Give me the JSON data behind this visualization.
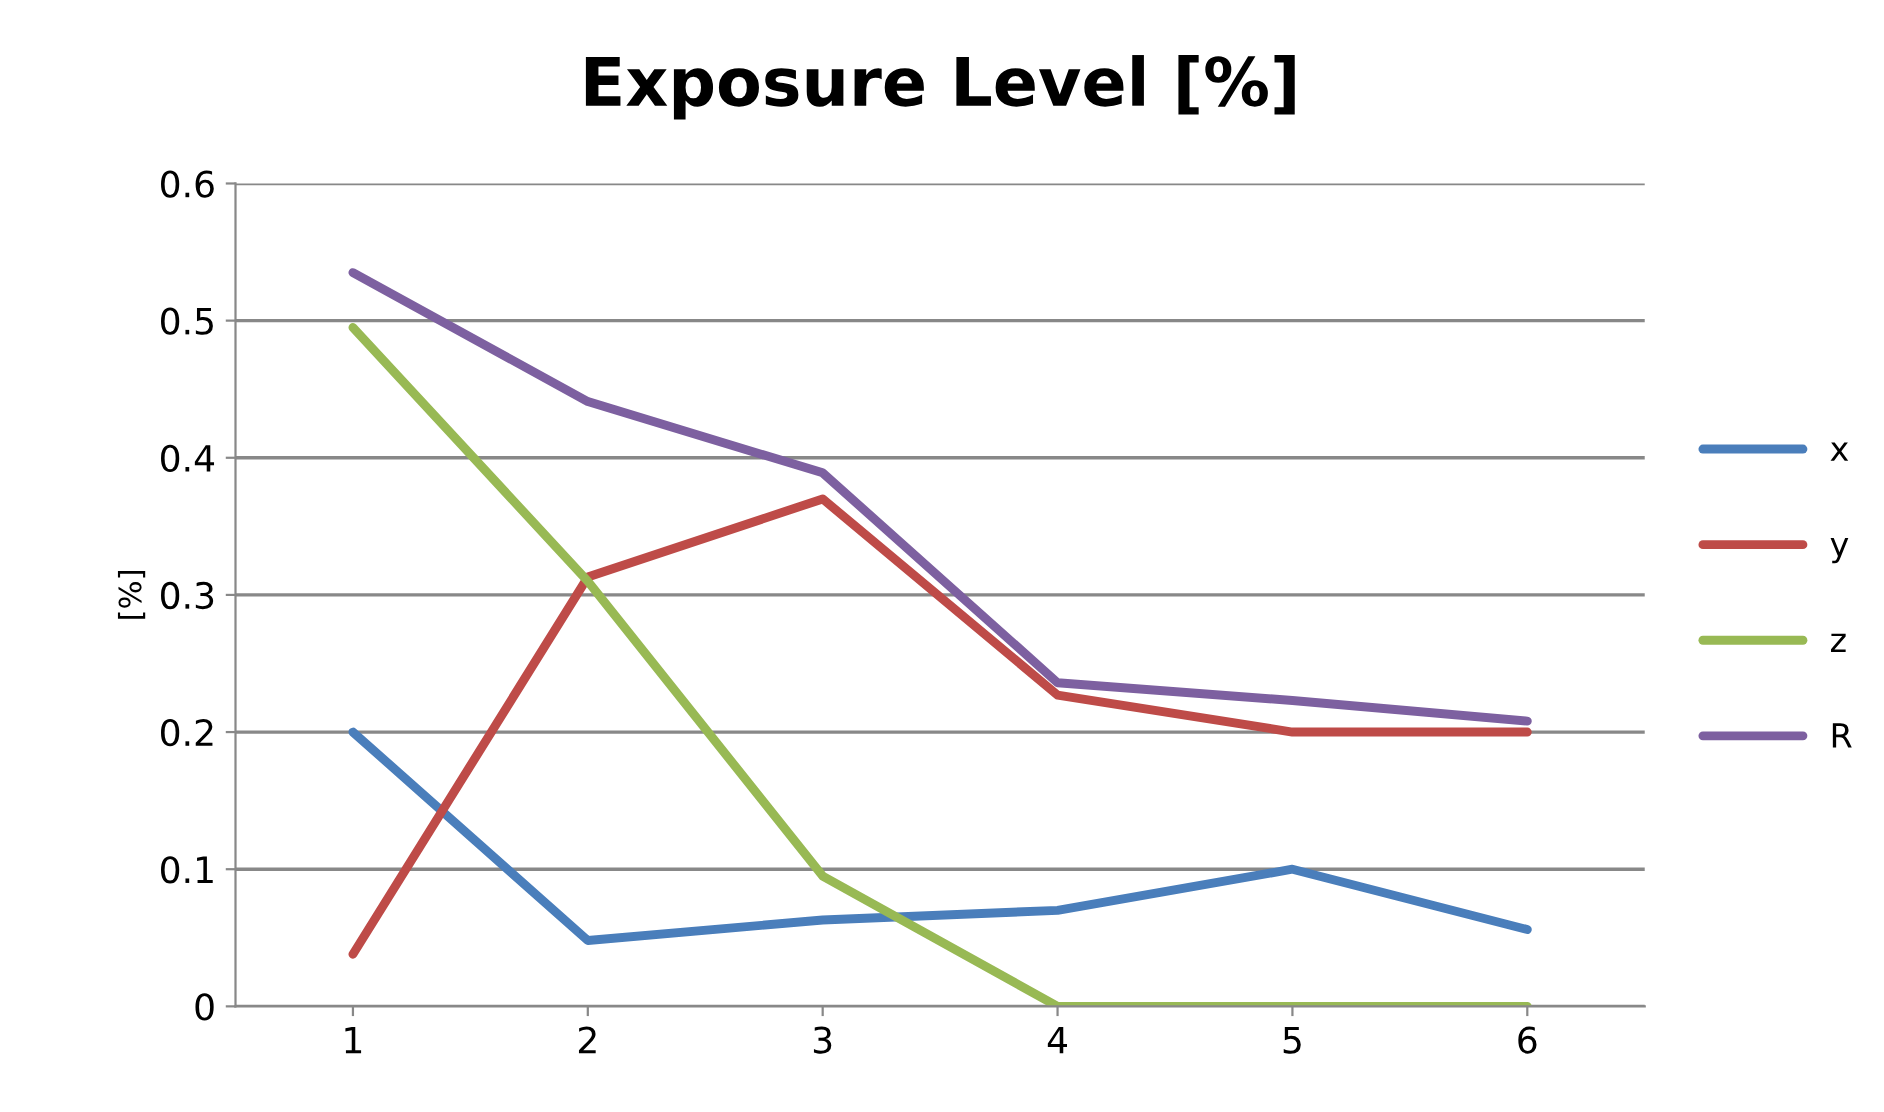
{
  "chart_data": {
    "type": "line",
    "title": "Exposure Level [%]",
    "ylabel": "[%]",
    "categories": [
      "1",
      "2",
      "3",
      "4",
      "5",
      "6"
    ],
    "series": [
      {
        "name": "x",
        "color": "#4a7ebb",
        "values": [
          0.2,
          0.048,
          0.063,
          0.07,
          0.1,
          0.056
        ]
      },
      {
        "name": "y",
        "color": "#be4b48",
        "values": [
          0.038,
          0.313,
          0.37,
          0.227,
          0.2,
          0.2
        ]
      },
      {
        "name": "z",
        "color": "#98b954",
        "values": [
          0.495,
          0.31,
          0.095,
          0,
          0,
          0
        ]
      },
      {
        "name": "R",
        "color": "#7d60a0",
        "values": [
          0.535,
          0.441,
          0.389,
          0.236,
          0.223,
          0.208
        ]
      }
    ],
    "ylim": [
      0,
      0.6
    ],
    "yticks": [
      {
        "value": 0,
        "label": "0"
      },
      0.1,
      0.2,
      0.3,
      0.4,
      0.5,
      0.6
    ],
    "grid": "y",
    "legend": "right",
    "marker": "none",
    "line_style": "solid"
  }
}
